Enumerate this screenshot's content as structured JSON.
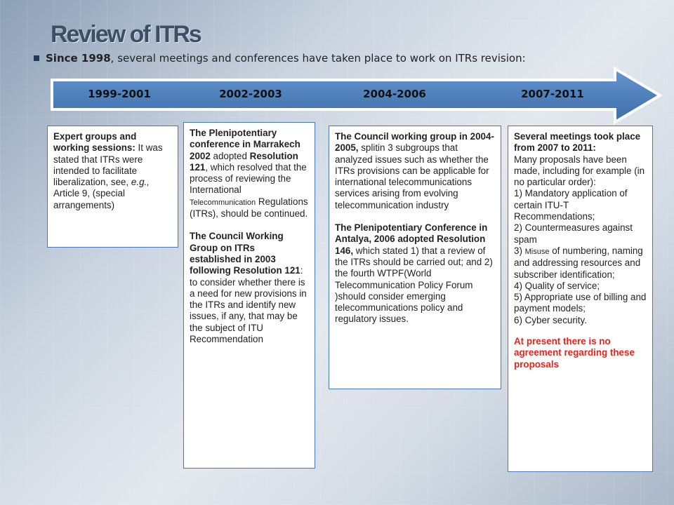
{
  "title": "Review of ITRs",
  "intro": {
    "lead_bold": "Since 1998",
    "rest": ", several meetings and conferences have taken place to work on ITRs revision:"
  },
  "timeline": {
    "periods": [
      "1999-2001",
      "2002-2003",
      "2004-2006",
      "2007-2011"
    ]
  },
  "boxes": {
    "b1": {
      "heading": "Expert groups and working sessions:",
      "t1": " It was stated that ITRs were intended to facilitate liberalization, see, ",
      "t2": "e.g.,",
      "t3": " Article 9, (special arrangements)"
    },
    "b2": {
      "p1_bold": "The Plenipotentiary conference in Marrakech 2002",
      "p1_a": " adopted ",
      "p1_bold2": "Resolution 121",
      "p1_b": ", which resolved that the process of reviewing the International ",
      "p1_small": "Telecommunication",
      "p1_c": " Regulations (ITRs), should be continued.",
      "p2_bold": "The Council Working Group on ITRs established in 2003 following Resolution 121",
      "p2_rest": ": to consider whether there is a need for new provisions in the ITRs and identify new issues, if any, that may be the subject of ITU Recommendation"
    },
    "b3": {
      "p1_bold": "The Council working group in 2004-2005,",
      "p1_rest": " splitin 3 subgroups that analyzed issues such as whether the ITRs provisions can be applicable for international telecommunications services arising from evolving telecommunication industry",
      "p2_bold": "The Plenipotentiary Conference in Antalya, 2006 adopted Resolution 146,",
      "p2_rest": " which stated 1) that a review of the ITRs should be carried out; and 2) the fourth WTPF(World Telecommunication Policy Forum )should consider emerging telecommunications policy and regulatory issues."
    },
    "b4": {
      "heading": "Several meetings took place from 2007 to 2011:",
      "intro": "Many proposals have been made, including for example (in no particular order):",
      "i1": "1) Mandatory application of certain ITU-T Recommendations;",
      "i2": "2) Countermeasures against spam",
      "i3_a": "3) ",
      "i3_small": "Misuse",
      "i3_b": " of numbering, naming and addressing resources and subscriber identification;",
      "i4": "4) Quality of service;",
      "i5": "5) Appropriate use of billing and payment models;",
      "i6": "6) Cyber security.",
      "note": "At present there is no agreement regarding these proposals"
    }
  },
  "colors": {
    "arrow_fill": "#4f81bd",
    "box_border": "#4a78b5",
    "alert": "#e8231b",
    "title": "#3b4f66"
  }
}
